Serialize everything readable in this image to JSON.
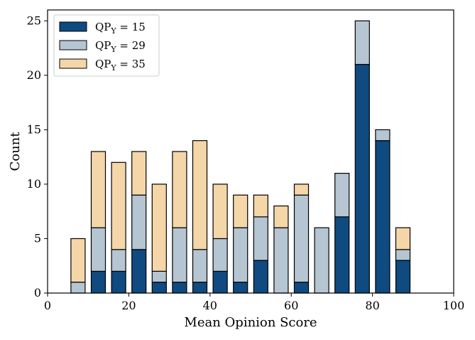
{
  "chart_data": {
    "type": "bar",
    "stacked": true,
    "title": "",
    "xlabel": "Mean Opinion Score",
    "ylabel": "Count",
    "xlim": [
      0,
      100
    ],
    "ylim": [
      0,
      26
    ],
    "xticks": [
      0,
      20,
      40,
      60,
      80,
      100
    ],
    "yticks": [
      0,
      5,
      10,
      15,
      20,
      25
    ],
    "bin_centers": [
      7.5,
      12.5,
      17.5,
      22.5,
      27.5,
      32.5,
      37.5,
      42.5,
      47.5,
      52.5,
      57.5,
      62.5,
      67.5,
      72.5,
      77.5,
      82.5,
      87.5
    ],
    "bin_width": 3.5,
    "series": [
      {
        "name": "QP_Y = 15",
        "legend_main": "QP",
        "legend_sub": "Y",
        "legend_rest": " = 15",
        "color": "#0f4a80",
        "values": [
          0,
          2,
          2,
          4,
          1,
          1,
          1,
          2,
          1,
          3,
          0,
          1,
          0,
          7,
          21,
          14,
          3
        ]
      },
      {
        "name": "QP_Y = 29",
        "legend_main": "QP",
        "legend_sub": "Y",
        "legend_rest": " = 29",
        "color": "#b5c5d2",
        "values": [
          1,
          4,
          2,
          5,
          1,
          5,
          3,
          3,
          5,
          4,
          6,
          8,
          6,
          4,
          4,
          1,
          1
        ]
      },
      {
        "name": "QP_Y = 35",
        "legend_main": "QP",
        "legend_sub": "Y",
        "legend_rest": " = 35",
        "color": "#f5d6a8",
        "values": [
          4,
          7,
          8,
          4,
          8,
          7,
          10,
          5,
          3,
          2,
          2,
          1,
          0,
          0,
          0,
          0,
          2
        ]
      }
    ],
    "legend_position": "top-left",
    "grid": false
  }
}
